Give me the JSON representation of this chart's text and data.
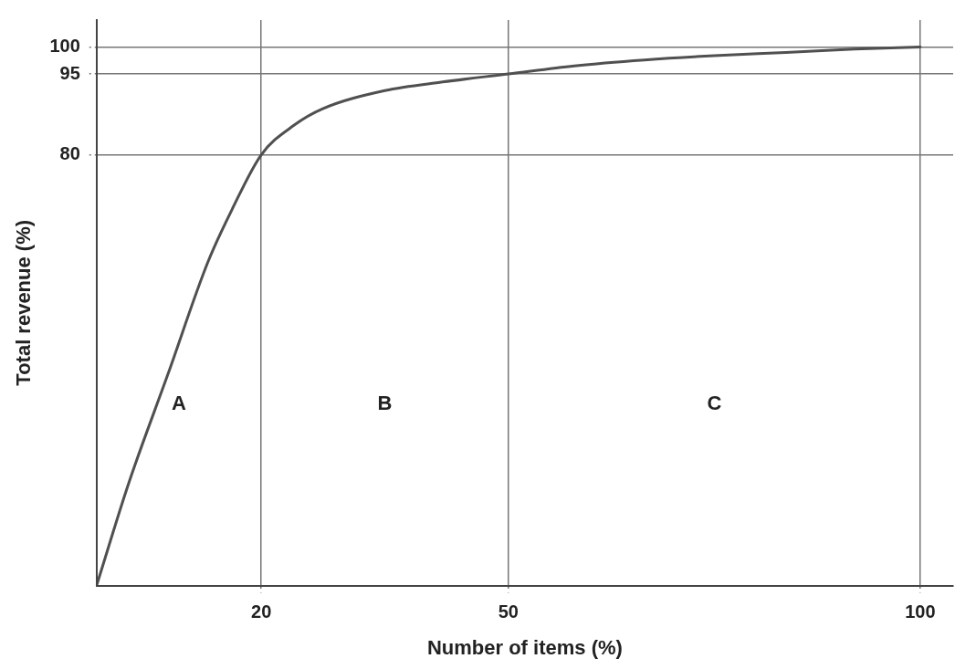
{
  "chart_data": {
    "type": "line",
    "xlabel": "Number of items (%)",
    "ylabel": "Total revenue (%)",
    "x": [
      0,
      3.9,
      8.7,
      13.5,
      16.5,
      20,
      24,
      27.4,
      35,
      42,
      50,
      58,
      66.5,
      75,
      83.7,
      92,
      100
    ],
    "series": [
      {
        "color": "#505050",
        "values": [
          0,
          19,
          39.4,
          60,
          70,
          80,
          85.5,
          88.5,
          91.9,
          93.5,
          95,
          96.5,
          97.6,
          98.4,
          99,
          99.6,
          100
        ]
      }
    ],
    "xlim": [
      0,
      104
    ],
    "ylim": [
      0,
      105
    ],
    "xticks": [
      20,
      50,
      100
    ],
    "yticks": [
      80,
      95,
      100
    ],
    "grid": true,
    "legend": false,
    "marker": "none",
    "line_style": "solid",
    "annotations": [
      "A",
      "B",
      "C"
    ]
  }
}
